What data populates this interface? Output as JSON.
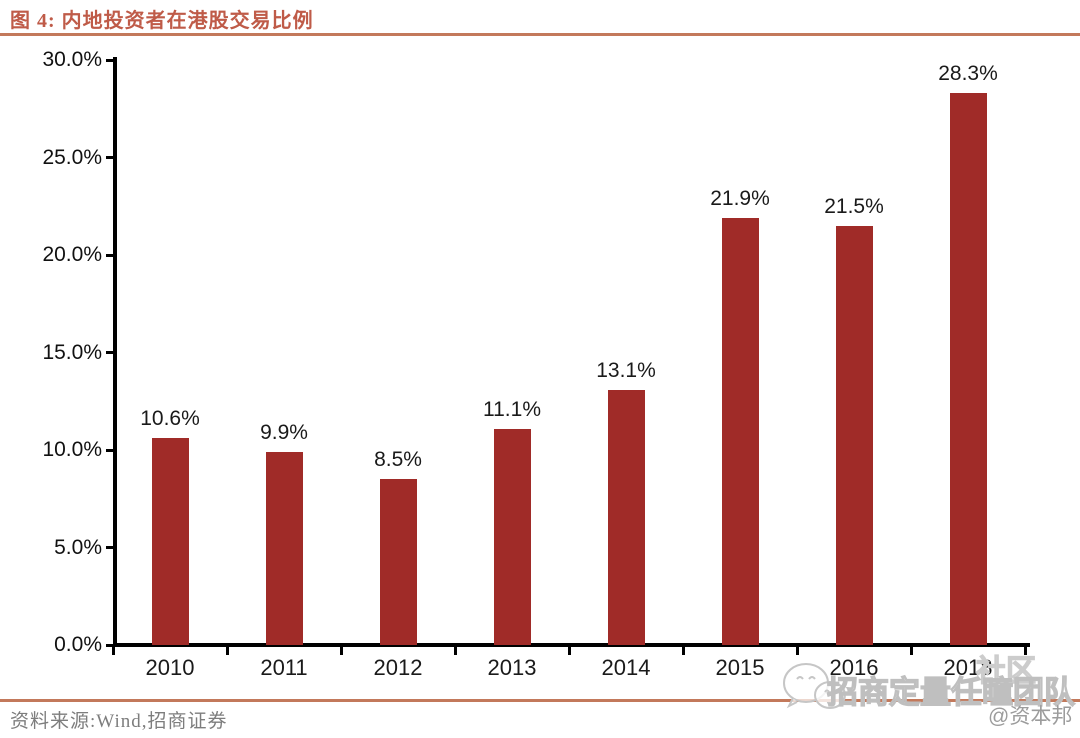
{
  "header": {
    "title": "图 4: 内地投资者在港股交易比例"
  },
  "footer": {
    "source": "资料来源:Wind,招商证券"
  },
  "watermark": {
    "team_text": "招商定量任瞳团队",
    "partial_text": "社区",
    "handle": "@资本邦",
    "wechat_icon": "wechat-icon"
  },
  "colors": {
    "bar": "#A02B28",
    "accent_line": "#C3795B",
    "title_text": "#BF5B48",
    "axis": "#000000",
    "label_text": "#1a1a1a",
    "source_text": "#7d7d7d",
    "watermark": "#bfbfbf"
  },
  "chart_data": {
    "type": "bar",
    "title": "内地投资者在港股交易比例",
    "categories": [
      "2010",
      "2011",
      "2012",
      "2013",
      "2014",
      "2015",
      "2016",
      "2018"
    ],
    "values": [
      10.6,
      9.9,
      8.5,
      11.1,
      13.1,
      21.9,
      21.5,
      28.3
    ],
    "value_labels": [
      "10.6%",
      "9.9%",
      "8.5%",
      "11.1%",
      "13.1%",
      "21.9%",
      "21.5%",
      "28.3%"
    ],
    "xlabel": "",
    "ylabel": "",
    "ylim": [
      0,
      30
    ],
    "yticks": [
      {
        "value": 30,
        "label": "30.0%"
      },
      {
        "value": 25,
        "label": "25.0%"
      },
      {
        "value": 20,
        "label": "20.0%"
      },
      {
        "value": 15,
        "label": "15.0%"
      },
      {
        "value": 10,
        "label": "10.0%"
      },
      {
        "value": 5,
        "label": "5.0%"
      },
      {
        "value": 0,
        "label": "0.0%"
      }
    ],
    "grid": false,
    "legend": null,
    "bar_color": "#A02B28"
  }
}
